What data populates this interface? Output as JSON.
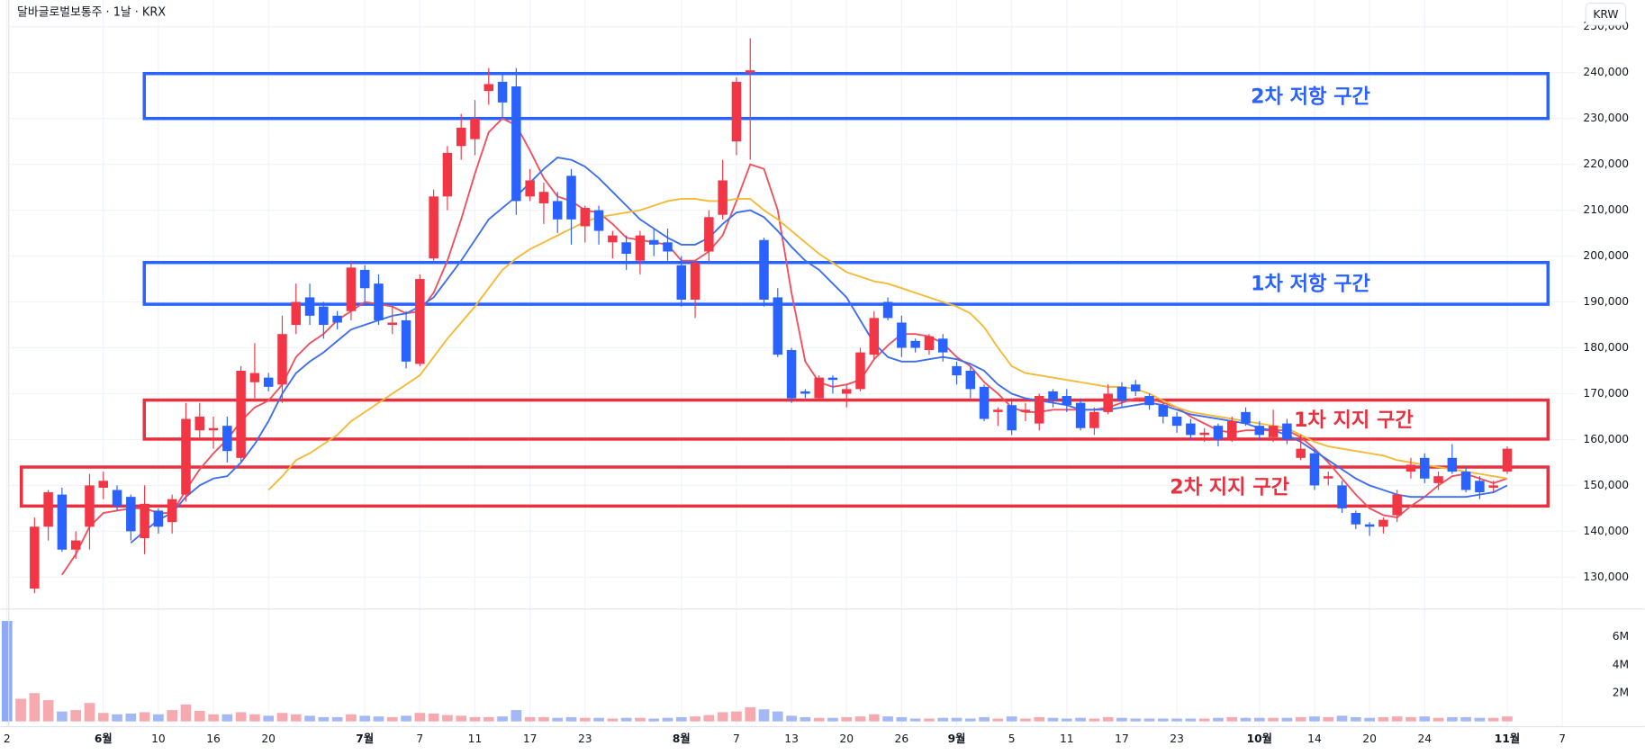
{
  "chart_data": {
    "type": "candlestick",
    "title": "달바글로벌보통주 · 1날 · KRX",
    "currency": "KRW",
    "categories": [
      "2",
      null,
      null,
      null,
      null,
      null,
      null,
      "6월",
      null,
      null,
      null,
      "10",
      null,
      null,
      null,
      "16",
      null,
      null,
      null,
      "20",
      null,
      null,
      null,
      null,
      null,
      null,
      "7월",
      null,
      null,
      null,
      "7",
      null,
      null,
      null,
      "11",
      null,
      null,
      null,
      "17",
      null,
      null,
      null,
      "23",
      null,
      null,
      null,
      null,
      null,
      null,
      "8월",
      null,
      null,
      null,
      "7",
      null,
      null,
      null,
      "13",
      null,
      null,
      null,
      "20",
      null,
      null,
      null,
      "26",
      null,
      null,
      null,
      "9월",
      null,
      null,
      null,
      "5",
      null,
      null,
      null,
      "11",
      null,
      null,
      null,
      "17",
      null,
      null,
      null,
      "23",
      null,
      null,
      null,
      null,
      null,
      "10월",
      null,
      null,
      null,
      "14",
      null,
      null,
      null,
      "20",
      null,
      null,
      null,
      "24",
      null,
      null,
      null,
      null,
      null,
      "11월",
      null,
      null,
      null,
      "7"
    ],
    "open": [
      null,
      null,
      127500,
      141000,
      148000,
      136000,
      141000,
      149500,
      149000,
      147500,
      138500,
      144500,
      142000,
      148000,
      162000,
      162000,
      163000,
      156000,
      172500,
      173500,
      172000,
      185000,
      191000,
      189000,
      187000,
      188000,
      197000,
      194000,
      185000,
      186000,
      176500,
      199500,
      213000,
      224000,
      225500,
      236000,
      238000,
      237000,
      213000,
      211500,
      212000,
      217500,
      206500,
      210000,
      203000,
      203000,
      199000,
      203500,
      203000,
      198000,
      190500,
      201000,
      209000,
      225000,
      240000,
      203500,
      191000,
      179500,
      170500,
      169000,
      173500,
      170000,
      171000,
      178500,
      190000,
      185500,
      181500,
      179500,
      182000,
      176000,
      175000,
      171500,
      166000,
      167500,
      166000,
      163500,
      170500,
      169500,
      168000,
      162500,
      166000,
      171500,
      172000,
      169500,
      167500,
      165000,
      163500,
      161000,
      163000,
      160000,
      166000,
      163000,
      160500,
      163500,
      156000,
      157000,
      151500,
      150000,
      144000,
      141500,
      141000,
      143500,
      153000,
      156000,
      150500,
      156000,
      153000,
      151000,
      149500,
      153000,
      null,
      null,
      null,
      null
    ],
    "high": [
      null,
      null,
      143000,
      149000,
      149500,
      140000,
      152500,
      153000,
      150000,
      148000,
      150000,
      145000,
      148000,
      168000,
      168000,
      165000,
      165000,
      176000,
      181000,
      174500,
      187000,
      194000,
      194000,
      190000,
      188000,
      199000,
      198000,
      196000,
      189000,
      188000,
      196000,
      214500,
      224000,
      231000,
      234000,
      241000,
      240000,
      241000,
      219000,
      216000,
      214000,
      219000,
      211000,
      211000,
      205500,
      204500,
      205500,
      206000,
      206000,
      200000,
      199000,
      210000,
      221000,
      239000,
      247500,
      204000,
      193000,
      180000,
      171000,
      174000,
      174000,
      172000,
      180000,
      188000,
      191000,
      187000,
      182000,
      183000,
      183000,
      177000,
      176000,
      172000,
      167000,
      169000,
      168000,
      170000,
      171000,
      171000,
      169000,
      167000,
      172000,
      172500,
      173000,
      170000,
      168000,
      166000,
      164500,
      162500,
      163500,
      165000,
      167000,
      164000,
      166500,
      164500,
      161000,
      158000,
      153000,
      151000,
      144500,
      142000,
      143000,
      149000,
      156000,
      157000,
      153000,
      159000,
      154000,
      152000,
      151000,
      158500,
      null,
      null,
      null,
      null
    ],
    "low": [
      null,
      null,
      126500,
      138000,
      135500,
      134000,
      136000,
      147000,
      144500,
      138000,
      135000,
      139500,
      139500,
      146500,
      160000,
      158000,
      155000,
      155000,
      169000,
      170500,
      168000,
      183000,
      185000,
      182000,
      184000,
      186000,
      190000,
      185000,
      183000,
      175500,
      176000,
      199000,
      210000,
      221000,
      222000,
      233000,
      230000,
      209000,
      212000,
      207000,
      205000,
      202500,
      203000,
      202500,
      199500,
      197000,
      196000,
      200000,
      199000,
      189000,
      186500,
      198500,
      208000,
      222000,
      221000,
      189000,
      178000,
      168000,
      169000,
      168500,
      170000,
      167000,
      170500,
      177500,
      186000,
      178000,
      179000,
      178500,
      177000,
      172000,
      169000,
      164000,
      163000,
      161000,
      164000,
      162000,
      167000,
      166000,
      162000,
      161000,
      165500,
      167000,
      169500,
      166500,
      163500,
      161500,
      160000,
      159500,
      158500,
      159500,
      163000,
      160000,
      159500,
      159000,
      155500,
      149000,
      150000,
      144000,
      140500,
      139000,
      139500,
      142000,
      151500,
      150500,
      149000,
      152500,
      148500,
      147000,
      148500,
      152500,
      null,
      null,
      null,
      null
    ],
    "close": [
      null,
      null,
      141000,
      148500,
      136000,
      138000,
      150000,
      151000,
      145500,
      140000,
      146000,
      141000,
      147000,
      164500,
      165000,
      162500,
      157500,
      175000,
      174500,
      171500,
      183000,
      190000,
      187000,
      185000,
      185500,
      197500,
      193000,
      186000,
      185500,
      177000,
      195000,
      213000,
      222500,
      228000,
      230000,
      237500,
      233500,
      212000,
      216500,
      214000,
      208000,
      208000,
      210500,
      205500,
      204500,
      200500,
      204500,
      202500,
      201000,
      190500,
      198500,
      208500,
      216500,
      238000,
      240500,
      190500,
      178500,
      169000,
      170000,
      173500,
      173000,
      171000,
      179000,
      186500,
      186500,
      180000,
      180000,
      182500,
      179000,
      174000,
      171000,
      164500,
      166500,
      162000,
      166500,
      169500,
      168500,
      167500,
      162500,
      166000,
      170000,
      168500,
      170500,
      167500,
      165000,
      163000,
      161000,
      161500,
      160000,
      164000,
      163500,
      161000,
      163000,
      160000,
      158000,
      150000,
      152000,
      145000,
      141500,
      141000,
      142500,
      148000,
      154500,
      151500,
      152000,
      153000,
      149000,
      148500,
      150000,
      158000,
      null,
      null,
      null,
      null
    ],
    "colors": {
      "up": "#f23645",
      "down": "#2962ff"
    },
    "ylim": [
      123500,
      250800
    ],
    "yticks": [
      {
        "value": 130000,
        "label": "130,000"
      },
      {
        "value": 140000,
        "label": "140,000"
      },
      {
        "value": 150000,
        "label": "150,000"
      },
      {
        "value": 160000,
        "label": "160,000"
      },
      {
        "value": 170000,
        "label": "170,000"
      },
      {
        "value": 180000,
        "label": "180,000"
      },
      {
        "value": 190000,
        "label": "190,000"
      },
      {
        "value": 200000,
        "label": "200,000"
      },
      {
        "value": 210000,
        "label": "210,000"
      },
      {
        "value": 220000,
        "label": "220,000"
      },
      {
        "value": 230000,
        "label": "230,000"
      },
      {
        "value": 240000,
        "label": "240,000"
      },
      {
        "value": 250000,
        "label": "250,000"
      }
    ],
    "grid": true,
    "moving_averages": [
      {
        "color": "#f0505c",
        "values": [
          null,
          null,
          null,
          null,
          130500,
          135000,
          141000,
          144000,
          144500,
          145000,
          145000,
          144000,
          144000,
          149000,
          153500,
          157000,
          160000,
          164000,
          167000,
          168500,
          172000,
          178000,
          181000,
          183000,
          186000,
          188000,
          190000,
          189500,
          189000,
          187500,
          188000,
          192000,
          199000,
          208000,
          218000,
          227000,
          230000,
          228500,
          223000,
          217000,
          213000,
          212000,
          210000,
          209500,
          207000,
          204000,
          203500,
          203000,
          202500,
          199000,
          199000,
          201000,
          204500,
          212000,
          220000,
          219000,
          210000,
          192000,
          177000,
          172500,
          171500,
          172000,
          173000,
          177500,
          180500,
          183000,
          183000,
          182500,
          181000,
          178000,
          176000,
          172500,
          170000,
          167000,
          166000,
          166000,
          166500,
          166500,
          166500,
          166500,
          167000,
          168000,
          169000,
          169000,
          168000,
          167000,
          165000,
          163500,
          162000,
          161500,
          162000,
          162000,
          162000,
          162000,
          160500,
          158000,
          155000,
          151500,
          148000,
          145000,
          143500,
          143000,
          145500,
          147500,
          150000,
          152000,
          152500,
          151500,
          150500,
          151500,
          null,
          null,
          null,
          null
        ]
      },
      {
        "color": "#3d6ef2",
        "values": [
          null,
          null,
          null,
          null,
          null,
          null,
          null,
          null,
          null,
          137500,
          140000,
          142500,
          144000,
          147500,
          150000,
          151500,
          152000,
          155000,
          159000,
          164000,
          170000,
          174500,
          177000,
          179000,
          181500,
          184000,
          185000,
          186000,
          187000,
          187500,
          189000,
          191000,
          195000,
          199000,
          203500,
          208000,
          210500,
          213000,
          216000,
          219000,
          221500,
          221000,
          219500,
          217000,
          214000,
          211000,
          208000,
          206000,
          204000,
          202500,
          202500,
          204000,
          207000,
          209500,
          210000,
          208500,
          205500,
          202000,
          199000,
          197000,
          194000,
          191000,
          186000,
          181000,
          178000,
          177000,
          177000,
          177500,
          178000,
          177500,
          176500,
          175000,
          172000,
          170000,
          169000,
          168500,
          168000,
          167500,
          166500,
          166500,
          166500,
          167000,
          167500,
          168000,
          167500,
          166500,
          165500,
          165000,
          164500,
          164000,
          163500,
          162500,
          162000,
          161000,
          159500,
          157500,
          155500,
          153500,
          151500,
          150000,
          149000,
          148000,
          147500,
          147500,
          147500,
          147500,
          147500,
          148000,
          148500,
          150000,
          null,
          null,
          null,
          null
        ]
      },
      {
        "color": "#f5b935",
        "values": [
          null,
          null,
          null,
          null,
          null,
          null,
          null,
          null,
          null,
          null,
          null,
          null,
          null,
          null,
          null,
          null,
          null,
          null,
          null,
          149000,
          152000,
          155500,
          157000,
          159000,
          161000,
          164000,
          166000,
          168000,
          170000,
          172000,
          174000,
          178000,
          182000,
          185500,
          189000,
          193000,
          197000,
          199500,
          201500,
          203000,
          204500,
          206000,
          207500,
          208500,
          209000,
          209500,
          210000,
          211000,
          212000,
          212500,
          212500,
          212000,
          212000,
          212500,
          212500,
          210000,
          208000,
          205500,
          203000,
          200500,
          198500,
          196500,
          195500,
          194500,
          194000,
          193000,
          192000,
          191000,
          190000,
          189000,
          187500,
          184500,
          180000,
          176000,
          174500,
          174000,
          173500,
          173000,
          172500,
          172000,
          171500,
          171500,
          171000,
          170000,
          168500,
          167000,
          166000,
          165500,
          165000,
          164500,
          164000,
          163500,
          163000,
          162500,
          161000,
          159500,
          158500,
          158000,
          157500,
          157000,
          156500,
          155500,
          155000,
          154500,
          154000,
          153500,
          153000,
          152500,
          152000,
          151500,
          null,
          null,
          null,
          null
        ]
      }
    ],
    "volume": {
      "values": [
        7100000,
        1600000,
        2000000,
        1500000,
        700000,
        800000,
        1300000,
        600000,
        500000,
        550000,
        650000,
        500000,
        800000,
        1200000,
        750000,
        500000,
        500000,
        650000,
        500000,
        400000,
        600000,
        500000,
        400000,
        300000,
        300000,
        500000,
        400000,
        350000,
        300000,
        400000,
        600000,
        550000,
        450000,
        400000,
        300000,
        300000,
        350000,
        800000,
        300000,
        300000,
        250000,
        300000,
        250000,
        250000,
        200000,
        250000,
        250000,
        200000,
        250000,
        300000,
        350000,
        450000,
        650000,
        700000,
        1000000,
        850000,
        700000,
        400000,
        300000,
        250000,
        250000,
        300000,
        350000,
        500000,
        350000,
        300000,
        200000,
        200000,
        250000,
        250000,
        200000,
        300000,
        200000,
        350000,
        200000,
        300000,
        250000,
        200000,
        250000,
        200000,
        300000,
        250000,
        200000,
        200000,
        200000,
        200000,
        200000,
        200000,
        250000,
        300000,
        250000,
        250000,
        250000,
        250000,
        300000,
        350000,
        300000,
        400000,
        300000,
        250000,
        300000,
        350000,
        300000,
        350000,
        250000,
        300000,
        300000,
        250000,
        250000,
        350000,
        null,
        null,
        null,
        null
      ],
      "direction": [
        "down",
        "up",
        "up",
        "up",
        "down",
        "up",
        "up",
        "up",
        "down",
        "down",
        "up",
        "down",
        "up",
        "up",
        "up",
        "up",
        "down",
        "up",
        "up",
        "down",
        "up",
        "up",
        "down",
        "down",
        "down",
        "up",
        "down",
        "down",
        "up",
        "down",
        "up",
        "up",
        "up",
        "up",
        "up",
        "up",
        "down",
        "down",
        "up",
        "up",
        "down",
        "down",
        "up",
        "down",
        "up",
        "down",
        "up",
        "down",
        "down",
        "down",
        "up",
        "up",
        "up",
        "up",
        "up",
        "down",
        "down",
        "down",
        "down",
        "up",
        "down",
        "up",
        "up",
        "up",
        "down",
        "down",
        "down",
        "up",
        "down",
        "down",
        "down",
        "down",
        "up",
        "down",
        "up",
        "up",
        "down",
        "down",
        "down",
        "up",
        "up",
        "down",
        "down",
        "down",
        "down",
        "down",
        "down",
        "up",
        "down",
        "up",
        "down",
        "down",
        "up",
        "down",
        "up",
        "down",
        "up",
        "down",
        "down",
        "down",
        "up",
        "up",
        "up",
        "down",
        "up",
        "down",
        "down",
        "down",
        "up",
        "up",
        null,
        null,
        null,
        null
      ],
      "colors": {
        "up": "#f7a9b0",
        "down": "#a3b8f5",
        "first": "#8fa9f7"
      },
      "ylim": [
        0,
        7200000
      ],
      "yticks": [
        {
          "value": 2000000,
          "label": "2M"
        },
        {
          "value": 4000000,
          "label": "4M"
        },
        {
          "value": 6000000,
          "label": "6M"
        }
      ]
    },
    "zones": [
      {
        "label": "2차 저항 구간",
        "range": [
          230000,
          239800
        ],
        "color": "#2962ff"
      },
      {
        "label": "1차 저항 구간",
        "range": [
          189500,
          198600
        ],
        "color": "#2962ff"
      },
      {
        "label": "1차 지지 구간",
        "range": [
          160100,
          168600
        ],
        "color": "#e8303f"
      },
      {
        "label": "2차 지지 구간",
        "range": [
          145500,
          154000
        ],
        "color": "#e8303f"
      }
    ]
  }
}
